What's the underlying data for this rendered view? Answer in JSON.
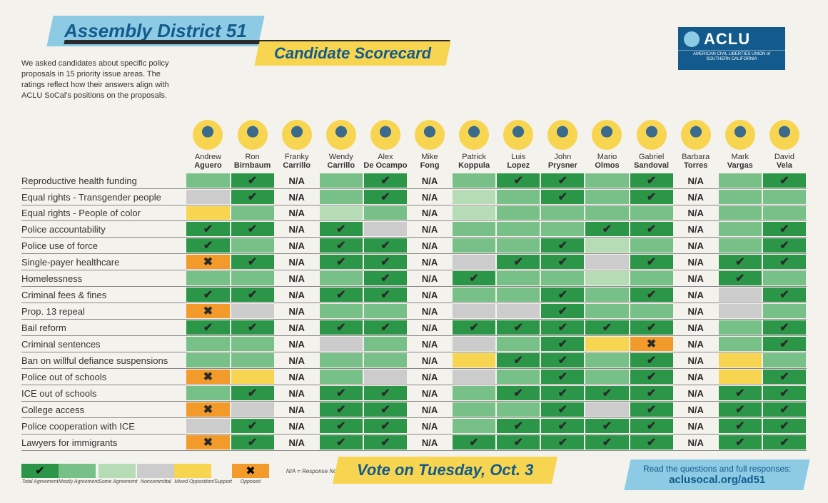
{
  "header": {
    "title": "Assembly District 51",
    "subtitle": "Candidate Scorecard"
  },
  "logo": {
    "text": "ACLU",
    "sub": "AMERICAN CIVIL LIBERTIES UNION of SOUTHERN CALIFORNIA"
  },
  "intro": "We asked candidates about specific policy proposals in 15 priority issue areas. The ratings reflect how their answers align with ACLU SoCal's positions on the proposals.",
  "candidates": [
    {
      "first": "Andrew",
      "last": "Aguero"
    },
    {
      "first": "Ron",
      "last": "Birnbaum"
    },
    {
      "first": "Franky",
      "last": "Carrillo"
    },
    {
      "first": "Wendy",
      "last": "Carrillo"
    },
    {
      "first": "Alex",
      "last": "De Ocampo"
    },
    {
      "first": "Mike",
      "last": "Fong"
    },
    {
      "first": "Patrick",
      "last": "Koppula"
    },
    {
      "first": "Luis",
      "last": "Lopez"
    },
    {
      "first": "John",
      "last": "Prysner"
    },
    {
      "first": "Mario",
      "last": "Olmos"
    },
    {
      "first": "Gabriel",
      "last": "Sandoval"
    },
    {
      "first": "Barbara",
      "last": "Torres"
    },
    {
      "first": "Mark",
      "last": "Vargas"
    },
    {
      "first": "David",
      "last": "Vela"
    }
  ],
  "issues": [
    "Reproductive health funding",
    "Equal rights - Transgender people",
    "Equal rights - People of color",
    "Police accountability",
    "Police use of force",
    "Single-payer healthcare",
    "Homelessness",
    "Criminal fees & fines",
    "Prop. 13 repeal",
    "Bail reform",
    "Criminal sentences",
    "Ban on willful defiance suspensions",
    "Police out of schools",
    "ICE out of schools",
    "College access",
    "Police cooperation with ICE",
    "Lawyers for immigrants"
  ],
  "grid": [
    [
      "mostly",
      "total",
      "na",
      "mostly",
      "total",
      "na",
      "mostly",
      "total",
      "total",
      "mostly",
      "total",
      "na",
      "mostly",
      "total"
    ],
    [
      "noncom",
      "total",
      "na",
      "mostly",
      "total",
      "na",
      "some",
      "mostly",
      "total",
      "mostly",
      "total",
      "na",
      "mostly",
      "mostly"
    ],
    [
      "mixed",
      "mostly",
      "na",
      "some",
      "mostly",
      "na",
      "some",
      "mostly",
      "mostly",
      "mostly",
      "mostly",
      "na",
      "mostly",
      "mostly"
    ],
    [
      "total",
      "total",
      "na",
      "total",
      "noncom",
      "na",
      "mostly",
      "mostly",
      "mostly",
      "total",
      "total",
      "na",
      "mostly",
      "total"
    ],
    [
      "total",
      "mostly",
      "na",
      "total",
      "total",
      "na",
      "mostly",
      "mostly",
      "total",
      "some",
      "mostly",
      "na",
      "mostly",
      "total"
    ],
    [
      "opposed",
      "total",
      "na",
      "total",
      "total",
      "na",
      "noncom",
      "total",
      "total",
      "noncom",
      "total",
      "na",
      "total",
      "total"
    ],
    [
      "mostly",
      "mostly",
      "na",
      "mostly",
      "total",
      "na",
      "total",
      "mostly",
      "mostly",
      "some",
      "mostly",
      "na",
      "total",
      "mostly"
    ],
    [
      "total",
      "total",
      "na",
      "total",
      "total",
      "na",
      "mostly",
      "mostly",
      "total",
      "mostly",
      "total",
      "na",
      "noncom",
      "total"
    ],
    [
      "opposed",
      "noncom",
      "na",
      "mostly",
      "mostly",
      "na",
      "noncom",
      "noncom",
      "total",
      "mostly",
      "mostly",
      "na",
      "noncom",
      "mostly"
    ],
    [
      "total",
      "total",
      "na",
      "total",
      "total",
      "na",
      "total",
      "total",
      "total",
      "total",
      "total",
      "na",
      "mostly",
      "total"
    ],
    [
      "mostly",
      "mostly",
      "na",
      "noncom",
      "mostly",
      "na",
      "noncom",
      "mostly",
      "total",
      "mixed",
      "opposed",
      "na",
      "mostly",
      "total"
    ],
    [
      "mostly",
      "mostly",
      "na",
      "mostly",
      "mostly",
      "na",
      "mixed",
      "total",
      "total",
      "mostly",
      "total",
      "na",
      "mixed",
      "mostly"
    ],
    [
      "opposed",
      "mixed",
      "na",
      "mostly",
      "noncom",
      "na",
      "noncom",
      "mostly",
      "total",
      "mostly",
      "total",
      "na",
      "mixed",
      "total"
    ],
    [
      "mostly",
      "total",
      "na",
      "total",
      "total",
      "na",
      "mostly",
      "total",
      "total",
      "total",
      "total",
      "na",
      "total",
      "total"
    ],
    [
      "opposed",
      "noncom",
      "na",
      "total",
      "total",
      "na",
      "mostly",
      "mostly",
      "total",
      "noncom",
      "total",
      "na",
      "total",
      "total"
    ],
    [
      "noncom",
      "total",
      "na",
      "total",
      "total",
      "na",
      "mostly",
      "total",
      "total",
      "total",
      "total",
      "na",
      "total",
      "total"
    ],
    [
      "opposed",
      "total",
      "na",
      "total",
      "total",
      "na",
      "total",
      "total",
      "total",
      "total",
      "total",
      "na",
      "total",
      "total"
    ]
  ],
  "colors": {
    "total": "#2b9648",
    "mostly": "#77c088",
    "some": "#b5dcb5",
    "noncom": "#cccccc",
    "mixed": "#f8d550",
    "opposed": "#f39b2a",
    "background": "#f4f2ec",
    "blue_light": "#8dcae4",
    "blue_dark": "#135b8c",
    "yellow": "#f8d550"
  },
  "legend": [
    {
      "key": "total",
      "label": "Total Agreement",
      "mark": "check"
    },
    {
      "key": "mostly",
      "label": "Mostly Agreement",
      "mark": ""
    },
    {
      "key": "some",
      "label": "Some Agreement",
      "mark": ""
    },
    {
      "key": "noncom",
      "label": "Noncommittal",
      "mark": ""
    },
    {
      "key": "mixed",
      "label": "Mixed Opposition/Support",
      "mark": ""
    },
    {
      "key": "opposed",
      "label": "Opposed",
      "mark": "cross"
    }
  ],
  "legend_na": "N/A = Response Not Available",
  "footer": {
    "vote": "Vote on Tuesday, Oct. 3",
    "read_intro": "Read the questions and full responses:",
    "url": "aclusocal.org/ad51"
  }
}
